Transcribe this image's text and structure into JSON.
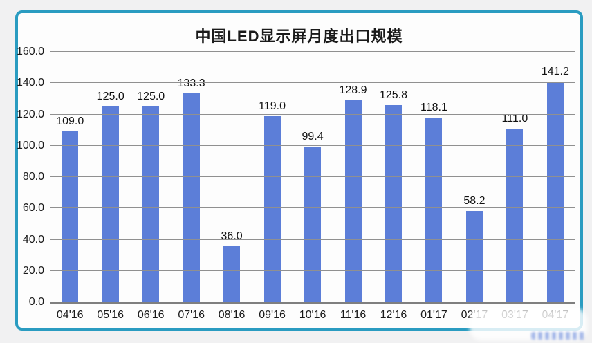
{
  "page": {
    "background": "#f1f1f2"
  },
  "card": {
    "border_color": "#2a9cc1",
    "background": "#fdfdfd"
  },
  "chart_data": {
    "type": "bar",
    "title": "中国LED显示屏月度出口规模",
    "categories": [
      "04'16",
      "05'16",
      "06'16",
      "07'16",
      "08'16",
      "09'16",
      "10'16",
      "11'16",
      "12'16",
      "01'17",
      "02'17",
      "03'17",
      "04'17"
    ],
    "values": [
      109.0,
      125.0,
      125.0,
      133.3,
      36.0,
      119.0,
      99.4,
      128.9,
      125.8,
      118.1,
      58.2,
      111.0,
      141.2
    ],
    "bar_color": "#5c7ed8",
    "xlabel": "",
    "ylabel": "",
    "ylim": [
      0,
      160
    ],
    "ytick_step": 20,
    "ytick_labels": [
      "0.0",
      "20.0",
      "40.0",
      "60.0",
      "80.0",
      "100.0",
      "120.0",
      "140.0",
      "160.0"
    ],
    "grid": true,
    "legend_position": "none"
  }
}
